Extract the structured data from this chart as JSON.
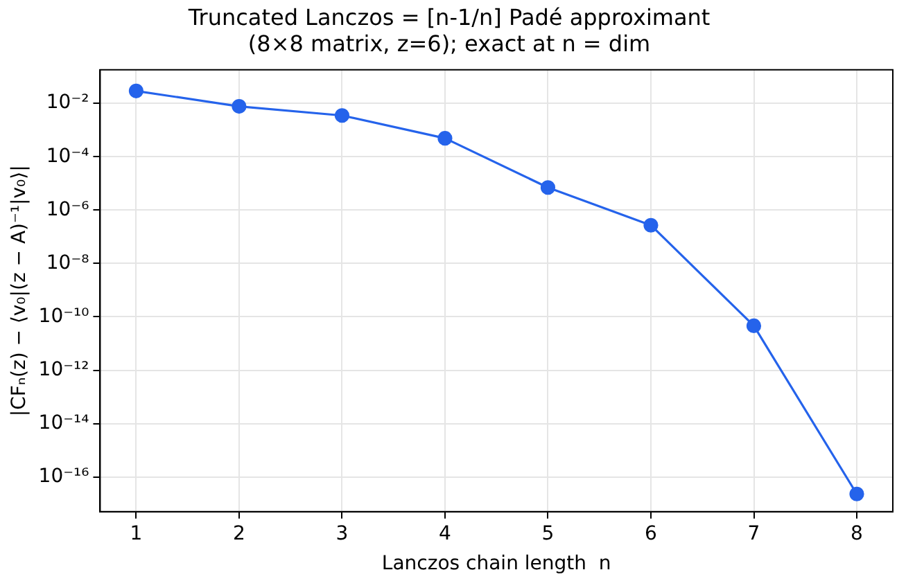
{
  "chart_data": {
    "type": "line",
    "title": "Truncated Lanczos = [n-1/n] Padé approximant",
    "subtitle": "(8×8 matrix, z=6); exact at n = dim",
    "xlabel": "Lanczos chain length  n",
    "ylabel": "|CFₙ(z) − ⟨v₀|(z − A)⁻¹|v₀⟩|",
    "x": [
      1,
      2,
      3,
      4,
      5,
      6,
      7,
      8
    ],
    "series": [
      {
        "color": "#2563eb",
        "values": [
          0.029,
          0.0077,
          0.0035,
          0.00049,
          7e-06,
          2.7e-07,
          4.6e-11,
          2.3e-17
        ]
      }
    ],
    "log": "y",
    "xlim": [
      0.65,
      8.35
    ],
    "xticks": [
      1,
      2,
      3,
      4,
      5,
      6,
      7,
      8
    ],
    "ylim": [
      5e-18,
      0.18
    ],
    "yticks": [
      {
        "value": 1e-16,
        "label": "10⁻¹⁶"
      },
      {
        "value": 1e-14,
        "label": "10⁻¹⁴"
      },
      {
        "value": 1e-12,
        "label": "10⁻¹²"
      },
      {
        "value": 1e-10,
        "label": "10⁻¹⁰"
      },
      {
        "value": 1e-08,
        "label": "10⁻⁸"
      },
      {
        "value": 1e-06,
        "label": "10⁻⁶"
      },
      {
        "value": 0.0001,
        "label": "10⁻⁴"
      },
      {
        "value": 0.01,
        "label": "10⁻²"
      }
    ],
    "grid": true,
    "marker": "circle",
    "line_style": "solid",
    "legend": false
  }
}
